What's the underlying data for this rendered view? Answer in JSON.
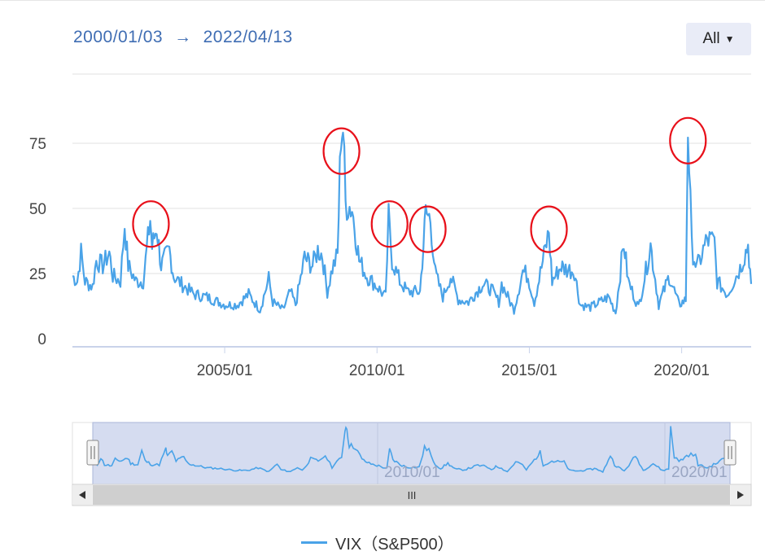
{
  "range": {
    "start": "2000/01/03",
    "arrow": "→",
    "end": "2022/04/13"
  },
  "range_button": {
    "label": "All",
    "caret_icon": "caret-down-icon"
  },
  "legend": {
    "label": "VIX（S&P500）"
  },
  "navigator": {
    "scroll_grip": "III",
    "left_arrow_icon": "arrow-left-icon",
    "right_arrow_icon": "arrow-right-icon",
    "handle_icon": "drag-handle-icon"
  },
  "colors": {
    "line": "#4aa3e8",
    "grid": "#e0e0e0",
    "axis": "#c9d3ea",
    "highlight": "#e8101a",
    "nav_fill": "#d5dcf0"
  },
  "chart_data": {
    "type": "line",
    "title": "",
    "xlabel": "",
    "ylabel": "",
    "x_range": [
      "2000-01-03",
      "2022-04-13"
    ],
    "ylim": [
      0,
      90
    ],
    "yticks": [
      0,
      25,
      50,
      75
    ],
    "xticks": [
      "2005/01",
      "2010/01",
      "2015/01",
      "2020/01"
    ],
    "navigator_xticks": [
      "2010/01",
      "2020/01"
    ],
    "grid": "horizontal",
    "legend_position": "bottom-center",
    "series": [
      {
        "name": "VIX（S&P500）",
        "points": [
          [
            "2000-01-03",
            24
          ],
          [
            "2000-03-01",
            22
          ],
          [
            "2000-04-15",
            33
          ],
          [
            "2000-06-01",
            22
          ],
          [
            "2000-09-01",
            20
          ],
          [
            "2000-10-15",
            30
          ],
          [
            "2001-01-01",
            28
          ],
          [
            "2001-03-20",
            33
          ],
          [
            "2001-05-01",
            24
          ],
          [
            "2001-08-01",
            22
          ],
          [
            "2001-09-20",
            44
          ],
          [
            "2001-11-01",
            28
          ],
          [
            "2002-02-01",
            22
          ],
          [
            "2002-05-01",
            22
          ],
          [
            "2002-07-24",
            46
          ],
          [
            "2002-08-15",
            35
          ],
          [
            "2002-10-09",
            43
          ],
          [
            "2002-12-01",
            28
          ],
          [
            "2003-03-10",
            34
          ],
          [
            "2003-05-01",
            24
          ],
          [
            "2003-08-01",
            21
          ],
          [
            "2004-01-01",
            17
          ],
          [
            "2004-06-01",
            16
          ],
          [
            "2005-01-01",
            13
          ],
          [
            "2005-06-01",
            13
          ],
          [
            "2005-10-15",
            17
          ],
          [
            "2006-03-01",
            11
          ],
          [
            "2006-06-13",
            23
          ],
          [
            "2006-08-01",
            14
          ],
          [
            "2006-12-01",
            11
          ],
          [
            "2007-02-27",
            18
          ],
          [
            "2007-05-01",
            13
          ],
          [
            "2007-08-16",
            31
          ],
          [
            "2007-11-20",
            28
          ],
          [
            "2008-01-22",
            34
          ],
          [
            "2008-03-17",
            32
          ],
          [
            "2008-05-15",
            18
          ],
          [
            "2008-07-15",
            27
          ],
          [
            "2008-09-15",
            32
          ],
          [
            "2008-10-27",
            80
          ],
          [
            "2008-11-20",
            81
          ],
          [
            "2008-12-20",
            52
          ],
          [
            "2009-03-09",
            50
          ],
          [
            "2009-06-01",
            30
          ],
          [
            "2009-09-01",
            24
          ],
          [
            "2010-01-01",
            20
          ],
          [
            "2010-04-15",
            16
          ],
          [
            "2010-05-20",
            46
          ],
          [
            "2010-07-01",
            30
          ],
          [
            "2010-10-01",
            22
          ],
          [
            "2011-01-01",
            18
          ],
          [
            "2011-06-01",
            18
          ],
          [
            "2011-08-08",
            48
          ],
          [
            "2011-10-03",
            46
          ],
          [
            "2011-12-01",
            25
          ],
          [
            "2012-03-01",
            16
          ],
          [
            "2012-06-01",
            24
          ],
          [
            "2012-09-01",
            15
          ],
          [
            "2013-01-01",
            14
          ],
          [
            "2013-06-20",
            21
          ],
          [
            "2013-10-01",
            19
          ],
          [
            "2014-01-01",
            14
          ],
          [
            "2014-02-03",
            21
          ],
          [
            "2014-07-01",
            11
          ],
          [
            "2014-10-15",
            26
          ],
          [
            "2014-12-16",
            24
          ],
          [
            "2015-03-01",
            14
          ],
          [
            "2015-08-24",
            41
          ],
          [
            "2015-10-01",
            22
          ],
          [
            "2016-01-20",
            28
          ],
          [
            "2016-02-11",
            27
          ],
          [
            "2016-06-24",
            26
          ],
          [
            "2016-09-01",
            13
          ],
          [
            "2017-01-01",
            12
          ],
          [
            "2017-08-10",
            16
          ],
          [
            "2017-11-01",
            10
          ],
          [
            "2018-02-06",
            37
          ],
          [
            "2018-04-01",
            22
          ],
          [
            "2018-08-01",
            12
          ],
          [
            "2018-10-29",
            26
          ],
          [
            "2018-12-24",
            36
          ],
          [
            "2019-04-01",
            13
          ],
          [
            "2019-08-05",
            24
          ],
          [
            "2019-12-01",
            13
          ],
          [
            "2020-02-20",
            15
          ],
          [
            "2020-03-16",
            83
          ],
          [
            "2020-05-01",
            35
          ],
          [
            "2020-07-01",
            27
          ],
          [
            "2020-11-01",
            38
          ],
          [
            "2021-01-28",
            37
          ],
          [
            "2021-03-01",
            22
          ],
          [
            "2021-07-01",
            17
          ],
          [
            "2021-12-01",
            27
          ],
          [
            "2022-01-24",
            32
          ],
          [
            "2022-03-07",
            36
          ],
          [
            "2022-04-13",
            21
          ]
        ]
      }
    ],
    "annotations": [
      {
        "type": "circle",
        "date": "2002-08-01",
        "value": 44
      },
      {
        "type": "circle",
        "date": "2008-11-01",
        "value": 72
      },
      {
        "type": "circle",
        "date": "2010-06-01",
        "value": 44
      },
      {
        "type": "circle",
        "date": "2011-09-01",
        "value": 42
      },
      {
        "type": "circle",
        "date": "2015-08-24",
        "value": 42
      },
      {
        "type": "circle",
        "date": "2020-03-16",
        "value": 76
      }
    ]
  }
}
